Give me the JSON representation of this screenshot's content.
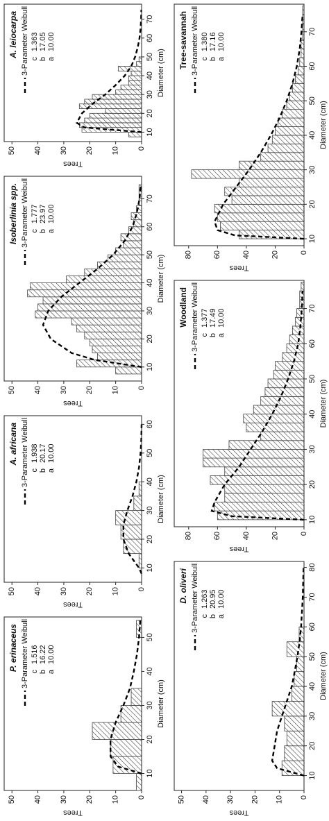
{
  "chart_data": [
    {
      "type": "histogram",
      "title": "P. erinaceus",
      "italic": true,
      "bins": [
        5,
        10,
        15,
        20,
        25,
        30,
        35,
        40,
        45,
        50,
        55
      ],
      "counts": [
        2,
        11,
        12,
        19,
        8,
        4,
        0,
        0,
        0,
        2
      ],
      "bar_color": "#ffffff",
      "hatch_color": "#444444",
      "curve": {
        "name": "3-Parameter Weibull",
        "color": "#000000",
        "x": [
          10,
          12,
          15,
          20,
          25,
          30,
          35,
          40,
          45,
          50,
          55
        ],
        "values": [
          0,
          9,
          12,
          12,
          10,
          7,
          4.5,
          3,
          1.8,
          1,
          0.5
        ]
      },
      "params": [
        {
          "name": "c",
          "value": "1.516"
        },
        {
          "name": "b",
          "value": "16.22"
        },
        {
          "name": "a",
          "value": "10.00"
        }
      ],
      "xlabel": "Diameter (cm)",
      "ylabel": "Trees",
      "xlim": [
        5,
        56
      ],
      "xticks": [
        10,
        20,
        30,
        40,
        50
      ],
      "ylim": [
        0,
        53
      ],
      "yticks": [
        0,
        10,
        20,
        30,
        40,
        50
      ]
    },
    {
      "type": "histogram",
      "title": "A. africana",
      "italic": true,
      "bins": [
        5,
        10,
        15,
        20,
        25,
        30,
        35,
        40
      ],
      "counts": [
        0,
        1,
        7,
        8,
        10,
        3,
        1
      ],
      "bar_color": "#ffffff",
      "hatch_color": "#444444",
      "curve": {
        "name": "3-Parameter Weibull",
        "color": "#000000",
        "x": [
          8,
          10,
          15,
          20,
          25,
          30,
          35,
          40,
          45,
          50,
          55,
          60
        ],
        "values": [
          0,
          1,
          5,
          7,
          7,
          5.5,
          3.5,
          2,
          1,
          0.4,
          0.1,
          0
        ]
      },
      "params": [
        {
          "name": "c",
          "value": "1.938"
        },
        {
          "name": "b",
          "value": "20.17"
        },
        {
          "name": "a",
          "value": "10.00"
        }
      ],
      "xlabel": "Diameter (cm)",
      "ylabel": "Trees",
      "xlim": [
        5,
        63
      ],
      "xticks": [
        10,
        20,
        30,
        40,
        50,
        60
      ],
      "ylim": [
        0,
        53
      ],
      "yticks": [
        0,
        10,
        20,
        30,
        40,
        50
      ]
    },
    {
      "type": "histogram",
      "title": "Isoberlinia spp.",
      "italic": true,
      "bins": [
        7.5,
        10,
        12.5,
        15,
        17.5,
        20,
        22.5,
        25,
        27.5,
        30,
        32.5,
        35,
        37.5,
        40,
        42.5,
        45,
        47.5,
        50,
        52.5,
        55,
        57.5,
        60,
        62.5,
        65,
        67.5,
        70,
        72.5,
        75
      ],
      "counts": [
        10,
        25,
        17,
        19,
        20,
        22,
        25,
        27,
        41,
        40,
        38,
        44,
        43,
        29,
        22,
        17,
        13,
        10,
        7,
        8,
        5,
        3,
        4,
        2,
        1,
        1,
        1
      ],
      "bar_color": "#ffffff",
      "hatch_color": "#444444",
      "curve": {
        "name": "3-Parameter Weibull",
        "color": "#000000",
        "x": [
          10,
          12.5,
          15,
          20,
          25,
          30,
          35,
          40,
          45,
          50,
          55,
          60,
          65,
          70,
          75
        ],
        "values": [
          0,
          18,
          27,
          35,
          38,
          36,
          31,
          24,
          17,
          11,
          6.5,
          3.5,
          1.8,
          0.8,
          0.3
        ]
      },
      "params": [
        {
          "name": "c",
          "value": "1.777"
        },
        {
          "name": "b",
          "value": "23.97"
        },
        {
          "name": "a",
          "value": "10.00"
        }
      ],
      "xlabel": "Diameter (cm)",
      "ylabel": "Trees",
      "xlim": [
        5,
        78
      ],
      "xticks": [
        10,
        20,
        30,
        40,
        50,
        60,
        70
      ],
      "ylim": [
        0,
        53
      ],
      "yticks": [
        0,
        10,
        20,
        30,
        40,
        50
      ]
    },
    {
      "type": "histogram",
      "title": "A. leiocarpa",
      "italic": true,
      "bins": [
        7.5,
        10,
        12.5,
        15,
        17.5,
        20,
        22.5,
        25,
        27.5,
        30,
        32.5,
        35,
        37.5,
        40,
        42.5,
        45,
        47.5,
        50
      ],
      "counts": [
        5,
        23,
        24,
        22,
        20,
        14,
        24,
        22,
        19,
        10,
        8,
        5,
        5,
        4,
        9,
        2,
        1
      ],
      "bar_color": "#ffffff",
      "hatch_color": "#444444",
      "curve": {
        "name": "3-Parameter Weibull",
        "color": "#000000",
        "x": [
          10,
          12.5,
          15,
          20,
          25,
          30,
          35,
          40,
          45,
          50,
          55,
          60,
          65,
          70,
          75
        ],
        "values": [
          0,
          22,
          25,
          23,
          19,
          14,
          10,
          6.5,
          4,
          2.5,
          1.5,
          0.8,
          0.4,
          0.2,
          0.1
        ]
      },
      "params": [
        {
          "name": "c",
          "value": "1.363"
        },
        {
          "name": "b",
          "value": "17.05"
        },
        {
          "name": "a",
          "value": "10.00"
        }
      ],
      "xlabel": "Diameter (cm)",
      "ylabel": "Trees",
      "xlim": [
        5,
        78
      ],
      "xticks": [
        10,
        20,
        30,
        40,
        50,
        60,
        70
      ],
      "ylim": [
        0,
        53
      ],
      "yticks": [
        0,
        10,
        20,
        30,
        40,
        50
      ]
    },
    {
      "type": "histogram",
      "title": "D. oliveri",
      "italic": true,
      "bins": [
        5,
        10,
        15,
        20,
        25,
        30,
        35,
        40,
        45,
        50,
        55,
        60
      ],
      "counts": [
        0,
        9,
        8,
        7,
        8,
        13,
        5,
        4,
        3,
        7,
        2
      ],
      "bar_color": "#ffffff",
      "hatch_color": "#444444",
      "curve": {
        "name": "3-Parameter Weibull",
        "color": "#000000",
        "x": [
          10,
          12.5,
          15,
          20,
          25,
          30,
          35,
          40,
          45,
          50,
          55,
          60,
          70,
          80
        ],
        "values": [
          0,
          11,
          13,
          12,
          11,
          9,
          7,
          5,
          3.8,
          2.7,
          1.8,
          1.2,
          0.5,
          0.2
        ]
      },
      "params": [
        {
          "name": "c",
          "value": "1.263"
        },
        {
          "name": "b",
          "value": "20.95"
        },
        {
          "name": "a",
          "value": "10.00"
        }
      ],
      "xlabel": "Diameter (cm)",
      "ylabel": "Trees",
      "xlim": [
        5,
        82
      ],
      "xticks": [
        10,
        20,
        30,
        40,
        50,
        60,
        70,
        80
      ],
      "ylim": [
        0,
        53
      ],
      "yticks": [
        0,
        10,
        20,
        30,
        40,
        50
      ]
    },
    {
      "type": "histogram",
      "title": "Woodland",
      "italic": false,
      "bins": [
        10,
        12.5,
        15,
        17.5,
        20,
        22.5,
        25,
        27.5,
        30,
        32.5,
        35,
        37.5,
        40,
        42.5,
        45,
        47.5,
        50,
        52.5,
        55,
        57.5,
        60,
        62.5,
        65,
        67.5,
        70,
        72.5,
        75,
        77.5
      ],
      "counts": [
        60,
        62,
        55,
        55,
        65,
        55,
        70,
        70,
        52,
        30,
        40,
        42,
        35,
        30,
        27,
        25,
        21,
        20,
        15,
        12,
        10,
        8,
        6,
        5,
        3,
        3,
        2
      ],
      "bar_color": "#ffffff",
      "hatch_color": "#444444",
      "curve": {
        "name": "3-Parameter Weibull",
        "color": "#000000",
        "x": [
          10,
          11,
          12.5,
          15,
          20,
          25,
          30,
          35,
          40,
          45,
          50,
          55,
          60,
          65,
          70,
          75
        ],
        "values": [
          0,
          50,
          64,
          62,
          55,
          45,
          37,
          29,
          22,
          16,
          11,
          7,
          4,
          2.5,
          1.5,
          1
        ]
      },
      "params": [
        {
          "name": "c",
          "value": "1.377"
        },
        {
          "name": "b",
          "value": "17.49"
        },
        {
          "name": "a",
          "value": "10.00"
        }
      ],
      "xlabel": "Diameter (cm)",
      "ylabel": "Trees",
      "xlim": [
        8,
        78
      ],
      "xticks": [
        10,
        20,
        30,
        40,
        50,
        60,
        70
      ],
      "ylim": [
        0,
        90
      ],
      "yticks": [
        0,
        20,
        40,
        60,
        80
      ]
    },
    {
      "type": "histogram",
      "title": "Tree-savannah",
      "italic": false,
      "bins": [
        10,
        12.5,
        15,
        17.5,
        20,
        22.5,
        25,
        27.5,
        30,
        32.5,
        35,
        37.5,
        40,
        42.5,
        45,
        47.5,
        50,
        52.5,
        55,
        57.5,
        60,
        62.5,
        65,
        67.5,
        70,
        72.5,
        75,
        77.5
      ],
      "counts": [
        45,
        58,
        60,
        62,
        50,
        55,
        45,
        78,
        45,
        30,
        25,
        22,
        20,
        18,
        15,
        12,
        10,
        8,
        6,
        4,
        3,
        2,
        2,
        1,
        1,
        1,
        1
      ],
      "bar_color": "#ffffff",
      "hatch_color": "#444444",
      "curve": {
        "name": "3-Parameter Weibull",
        "color": "#000000",
        "x": [
          10,
          11,
          12.5,
          15,
          20,
          25,
          30,
          35,
          40,
          45,
          50,
          55,
          60,
          65,
          70,
          75
        ],
        "values": [
          0,
          48,
          60,
          62,
          56,
          47,
          38,
          30,
          23,
          17,
          12,
          8,
          5,
          3,
          1.8,
          1
        ]
      },
      "params": [
        {
          "name": "c",
          "value": "1.380"
        },
        {
          "name": "b",
          "value": "17.16"
        },
        {
          "name": "a",
          "value": "10.00"
        }
      ],
      "xlabel": "Diameter (cm)",
      "ylabel": "Trees",
      "xlim": [
        8,
        78
      ],
      "xticks": [
        10,
        20,
        30,
        40,
        50,
        60,
        70
      ],
      "ylim": [
        0,
        90
      ],
      "yticks": [
        0,
        20,
        40,
        60,
        80
      ]
    }
  ]
}
